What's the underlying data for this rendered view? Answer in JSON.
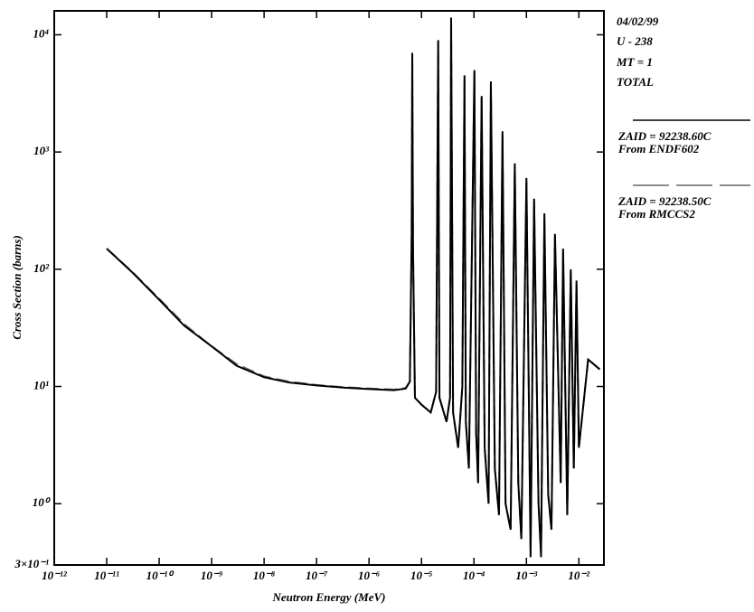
{
  "chart_data": {
    "type": "line",
    "xlabel": "Neutron Energy (MeV)",
    "ylabel": "Cross Section (barns)",
    "annotations": [
      "04/02/99",
      "U - 238",
      "MT = 1",
      "TOTAL"
    ],
    "xscale": "log",
    "yscale": "log",
    "xlim": [
      1e-12,
      0.03
    ],
    "ylim": [
      0.3,
      16000
    ],
    "xticks": [
      {
        "value": 1e-12,
        "label": "10⁻¹²"
      },
      {
        "value": 1e-11,
        "label": "10⁻¹¹"
      },
      {
        "value": 1e-10,
        "label": "10⁻¹⁰"
      },
      {
        "value": 1e-09,
        "label": "10⁻⁹"
      },
      {
        "value": 1e-08,
        "label": "10⁻⁸"
      },
      {
        "value": 1e-07,
        "label": "10⁻⁷"
      },
      {
        "value": 1e-06,
        "label": "10⁻⁶"
      },
      {
        "value": 1e-05,
        "label": "10⁻⁵"
      },
      {
        "value": 0.0001,
        "label": "10⁻⁴"
      },
      {
        "value": 0.001,
        "label": "10⁻³"
      },
      {
        "value": 0.01,
        "label": "10⁻²"
      }
    ],
    "yticks": [
      {
        "value": 0.3,
        "label": "3×10⁻¹"
      },
      {
        "value": 1,
        "label": "10⁰"
      },
      {
        "value": 10,
        "label": "10¹"
      },
      {
        "value": 100,
        "label": "10²"
      },
      {
        "value": 1000,
        "label": "10³"
      },
      {
        "value": 10000,
        "label": "10⁴"
      }
    ],
    "x": [
      1e-11,
      3e-11,
      1e-10,
      3e-10,
      1e-09,
      3e-09,
      1e-08,
      3e-08,
      1e-07,
      3e-07,
      1e-06,
      3e-06,
      5e-06,
      6e-06,
      6.5e-06,
      6.67e-06,
      6.9e-06,
      7.5e-06,
      1e-05,
      1.5e-05,
      1.9e-05,
      2.08e-05,
      2.2e-05,
      3e-05,
      3.5e-05,
      3.67e-05,
      4e-05,
      5e-05,
      6e-05,
      6.6e-05,
      7e-05,
      8e-05,
      0.000102,
      0.00011,
      0.00012,
      0.00014,
      0.00016,
      0.00019,
      0.00021,
      0.00025,
      0.0003,
      0.00035,
      0.0004,
      0.0005,
      0.0006,
      0.0007,
      0.0008,
      0.001,
      0.0012,
      0.0014,
      0.0017,
      0.0019,
      0.0022,
      0.0026,
      0.003,
      0.0035,
      0.0045,
      0.005,
      0.006,
      0.007,
      0.008,
      0.009,
      0.01,
      0.015,
      0.025
    ],
    "series": [
      {
        "name": "ZAID = 92238.60C",
        "source": "From ENDF602",
        "color": "#000000",
        "dash": "solid",
        "values": [
          150,
          95,
          55,
          33,
          22,
          15,
          12,
          10.8,
          10.2,
          9.8,
          9.5,
          9.3,
          9.6,
          11,
          200,
          7000,
          150,
          8,
          7,
          6,
          9,
          9000,
          8,
          5,
          8,
          14000,
          6,
          3,
          10,
          4500,
          5,
          2,
          5000,
          4,
          1.5,
          3000,
          3,
          1,
          4000,
          2,
          0.8,
          1500,
          1,
          0.6,
          800,
          1.5,
          0.5,
          600,
          0.35,
          400,
          1,
          0.35,
          300,
          1.2,
          0.6,
          200,
          1.5,
          150,
          0.8,
          100,
          2,
          80,
          3,
          17,
          14
        ]
      },
      {
        "name": "ZAID = 92238.50C",
        "source": "From RMCCS2",
        "color": "#666666",
        "dash": "dashed",
        "values": [
          150,
          96,
          56,
          34,
          22,
          15.5,
          12.2,
          11,
          10.3,
          9.9,
          9.6,
          9.4,
          9.7,
          11,
          190,
          6800,
          140,
          8,
          7,
          6,
          9,
          8700,
          8,
          5,
          8,
          13500,
          6,
          3,
          10,
          4300,
          5,
          2,
          4800,
          4,
          1.5,
          2900,
          3,
          1,
          3800,
          2,
          0.8,
          1400,
          1,
          0.6,
          750,
          1.5,
          0.5,
          550,
          0.4,
          380,
          1,
          0.4,
          280,
          1.2,
          0.6,
          190,
          1.5,
          140,
          0.8,
          95,
          2,
          75,
          3,
          17,
          14
        ]
      }
    ]
  }
}
